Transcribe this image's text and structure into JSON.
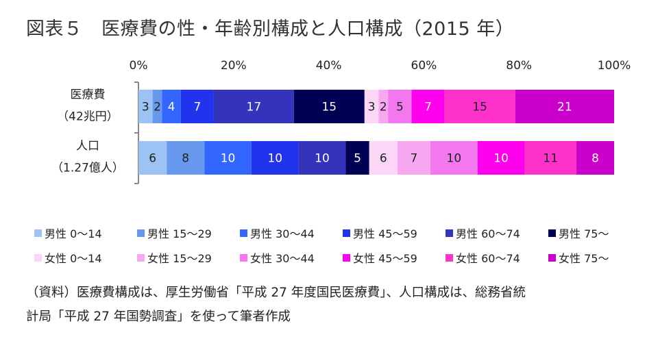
{
  "header": {
    "title": "図表５　医療費の性・年齢別構成と人口構成（2015 年）"
  },
  "chart_data": {
    "type": "bar",
    "orientation": "horizontal",
    "stacked": true,
    "xlim": [
      0,
      100
    ],
    "x_ticks": [
      "0%",
      "20%",
      "40%",
      "60%",
      "80%",
      "100%"
    ],
    "categories": [
      {
        "line1": "医療費",
        "line2": "（42兆円）"
      },
      {
        "line1": "人口",
        "line2": "（1.27億人）"
      }
    ],
    "series": [
      {
        "name": "男性 0～14",
        "color": "#9dc3f5",
        "values": [
          3,
          6
        ]
      },
      {
        "name": "男性 15～29",
        "color": "#6699ee",
        "values": [
          2,
          8
        ]
      },
      {
        "name": "男性 30～44",
        "color": "#3366ff",
        "values": [
          4,
          10
        ]
      },
      {
        "name": "男性 45～59",
        "color": "#2233ee",
        "values": [
          7,
          10
        ]
      },
      {
        "name": "男性 60～74",
        "color": "#3333bb",
        "values": [
          17,
          10
        ]
      },
      {
        "name": "男性 75～",
        "color": "#000055",
        "values": [
          15,
          5
        ]
      },
      {
        "name": "女性 0～14",
        "color": "#fcd6f7",
        "values": [
          3,
          6
        ]
      },
      {
        "name": "女性 15～29",
        "color": "#f8a8f0",
        "values": [
          2,
          7
        ]
      },
      {
        "name": "女性 30～44",
        "color": "#f377ee",
        "values": [
          5,
          10
        ]
      },
      {
        "name": "女性 45～59",
        "color": "#ff00ee",
        "values": [
          7,
          10
        ]
      },
      {
        "name": "女性 60～74",
        "color": "#ff33cc",
        "values": [
          15,
          11
        ]
      },
      {
        "name": "女性 75～",
        "color": "#cc00cc",
        "values": [
          21,
          8
        ]
      }
    ],
    "legend_position": "bottom",
    "grid": false
  },
  "footer": {
    "source_line1": "（資料）医療費構成は、厚生労働省「平成 27 年度国民医療費」、人口構成は、総務省統",
    "source_line2": "計局「平成 27 年国勢調査」を使って筆者作成"
  }
}
